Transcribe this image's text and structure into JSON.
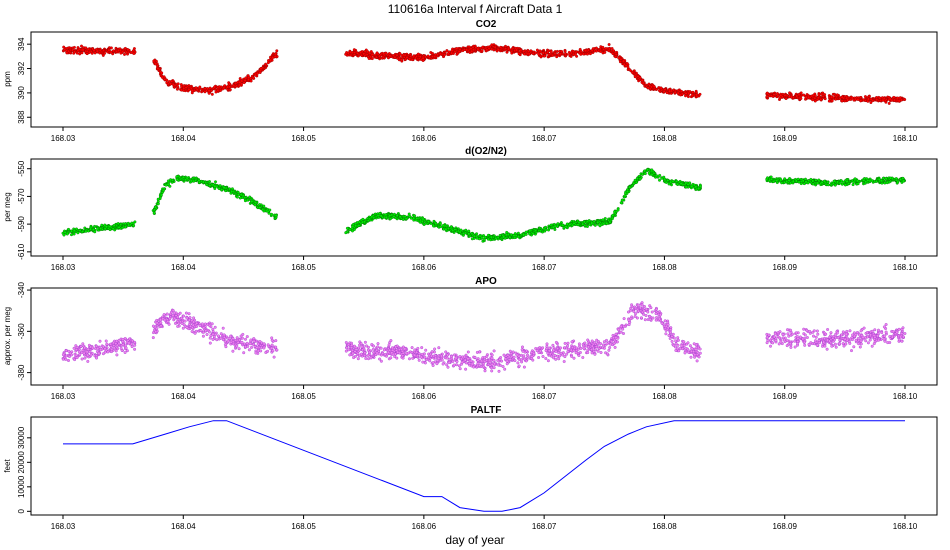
{
  "figure": {
    "title": "110616a   Interval f Aircraft Data 1",
    "xlabel": "day of year"
  },
  "chart_data": [
    {
      "type": "scatter",
      "title": "CO2",
      "ylabel": "ppm",
      "color": "#ff0000",
      "edge_color": "#8b0000",
      "xlim": [
        168.03,
        168.1
      ],
      "ylim": [
        387.2,
        395.0
      ],
      "yticks": [
        388,
        390,
        392,
        394
      ],
      "ytick_labels": [
        "388",
        "390",
        "392",
        "394"
      ],
      "xticks": [
        168.03,
        168.04,
        168.05,
        168.06,
        168.07,
        168.08,
        168.09,
        168.1
      ],
      "xtick_labels": [
        "168.03",
        "168.04",
        "168.05",
        "168.06",
        "168.07",
        "168.08",
        "168.09",
        "168.10"
      ],
      "noise": 0.25,
      "segments": [
        {
          "x": [
            168.03,
            168.036
          ],
          "y": [
            393.5,
            393.4
          ]
        },
        {
          "x": [
            168.0375,
            168.0385,
            168.04,
            168.042,
            168.044,
            168.046,
            168.0478
          ],
          "y": [
            392.8,
            391.0,
            390.4,
            390.2,
            390.5,
            391.4,
            393.3
          ]
        },
        {
          "x": [
            168.0535,
            168.057,
            168.06,
            168.063,
            168.066,
            168.069,
            168.072,
            168.0755,
            168.077,
            168.0785,
            168.08,
            168.083
          ],
          "y": [
            393.3,
            393.0,
            392.9,
            393.5,
            393.7,
            393.3,
            393.2,
            393.6,
            392.1,
            390.6,
            390.2,
            389.8
          ]
        },
        {
          "x": [
            168.0885,
            168.094,
            168.1
          ],
          "y": [
            389.8,
            389.6,
            389.4
          ]
        }
      ]
    },
    {
      "type": "scatter",
      "title": "d(O2/N2)",
      "ylabel": "per meg",
      "color": "#00ee00",
      "edge_color": "#006400",
      "xlim": [
        168.03,
        168.1
      ],
      "ylim": [
        -613.0,
        -543.0
      ],
      "yticks": [
        -610,
        -590,
        -570,
        -550
      ],
      "ytick_labels": [
        "-610",
        "-590",
        "-570",
        "-550"
      ],
      "xticks": [
        168.03,
        168.04,
        168.05,
        168.06,
        168.07,
        168.08,
        168.09,
        168.1
      ],
      "xtick_labels": [
        "168.03",
        "168.04",
        "168.05",
        "168.06",
        "168.07",
        "168.08",
        "168.09",
        "168.10"
      ],
      "noise": 2.0,
      "segments": [
        {
          "x": [
            168.03,
            168.033,
            168.036
          ],
          "y": [
            -596,
            -593,
            -590
          ]
        },
        {
          "x": [
            168.0375,
            168.0385,
            168.0395,
            168.041,
            168.043,
            168.045,
            168.0478
          ],
          "y": [
            -582,
            -562,
            -557,
            -558,
            -563,
            -570,
            -585
          ]
        },
        {
          "x": [
            168.0535,
            168.056,
            168.059,
            168.062,
            168.065,
            168.068,
            168.071,
            168.0755,
            168.077,
            168.0785,
            168.08,
            168.083
          ],
          "y": [
            -595,
            -584,
            -585,
            -593,
            -600,
            -598,
            -591,
            -588,
            -565,
            -551,
            -558,
            -564
          ]
        },
        {
          "x": [
            168.0885,
            168.094,
            168.1
          ],
          "y": [
            -558,
            -560,
            -558
          ]
        }
      ]
    },
    {
      "type": "scatter",
      "title": "APO",
      "ylabel": "approx. per meg",
      "color": "#ee82ee",
      "edge_color": "#9932cc",
      "xlim": [
        168.03,
        168.1
      ],
      "ylim": [
        -386.0,
        -339.0
      ],
      "yticks": [
        -380,
        -360,
        -340
      ],
      "ytick_labels": [
        "-380",
        "-360",
        "-340"
      ],
      "xticks": [
        168.03,
        168.04,
        168.05,
        168.06,
        168.07,
        168.08,
        168.09,
        168.1
      ],
      "xtick_labels": [
        "168.03",
        "168.04",
        "168.05",
        "168.06",
        "168.07",
        "168.08",
        "168.09",
        "168.10"
      ],
      "noise": 4.0,
      "segments": [
        {
          "x": [
            168.03,
            168.033,
            168.036
          ],
          "y": [
            -371,
            -369,
            -365
          ]
        },
        {
          "x": [
            168.0375,
            168.039,
            168.041,
            168.044,
            168.0478
          ],
          "y": [
            -360,
            -352,
            -357,
            -365,
            -368
          ]
        },
        {
          "x": [
            168.0535,
            168.058,
            168.062,
            168.066,
            168.07,
            168.0755,
            168.0775,
            168.0795,
            168.081,
            168.083
          ],
          "y": [
            -369,
            -370,
            -373,
            -375,
            -370,
            -367,
            -350,
            -352,
            -366,
            -371
          ]
        },
        {
          "x": [
            168.0885,
            168.094,
            168.1
          ],
          "y": [
            -363,
            -364,
            -361
          ]
        }
      ]
    },
    {
      "type": "line",
      "title": "PALTF",
      "ylabel": "feet",
      "color": "#0000ff",
      "xlim": [
        168.03,
        168.1
      ],
      "ylim": [
        -1500,
        38500
      ],
      "yticks": [
        0,
        10000,
        20000,
        30000
      ],
      "ytick_labels": [
        "0",
        "10000",
        "20000",
        "30000"
      ],
      "xticks": [
        168.03,
        168.04,
        168.05,
        168.06,
        168.07,
        168.08,
        168.09,
        168.1
      ],
      "xtick_labels": [
        "168.03",
        "168.04",
        "168.05",
        "168.06",
        "168.07",
        "168.08",
        "168.09",
        "168.10"
      ],
      "x": [
        168.03,
        168.0358,
        168.0385,
        168.0405,
        168.0425,
        168.0436,
        168.06,
        168.0615,
        168.063,
        168.065,
        168.0665,
        168.068,
        168.07,
        168.0735,
        168.075,
        168.077,
        168.0785,
        168.0808,
        168.09,
        168.1
      ],
      "y": [
        27500,
        27500,
        31500,
        34500,
        37000,
        37000,
        6000,
        6000,
        1500,
        0,
        0,
        1500,
        7500,
        21000,
        26500,
        31500,
        34500,
        37000,
        37000,
        37000
      ]
    }
  ]
}
